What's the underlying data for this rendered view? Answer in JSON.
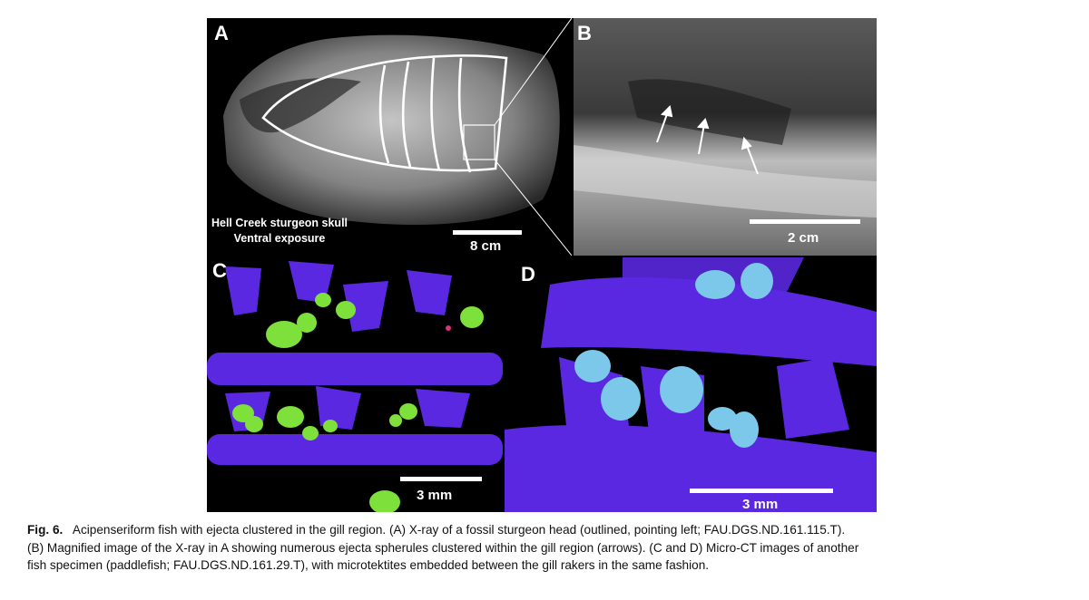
{
  "panels": {
    "a": {
      "label": "A",
      "caption_line1": "Hell Creek sturgeon skull",
      "caption_line2": "Ventral exposure",
      "scale": "8 cm"
    },
    "b": {
      "label": "B",
      "scale": "2 cm"
    },
    "c": {
      "label": "C",
      "scale": "3 mm"
    },
    "d": {
      "label": "D",
      "scale": "3 mm"
    }
  },
  "colors": {
    "bone": "#5a28e0",
    "ejecta_green": "#7ee03a",
    "ejecta_blue": "#7cc8ea",
    "magenta_spot": "#e0307a"
  },
  "caption": {
    "figure_number": "Fig. 6.",
    "line1": "Acipenseriform fish with ejecta clustered in the gill region. (A) X-ray of a fossil sturgeon head (outlined, pointing left; FAU.DGS.ND.161.115.T).",
    "line2": "(B) Magnified image of the X-ray in A showing numerous ejecta spherules clustered within the gill region (arrows). (C and D) Micro-CT images of another",
    "line3": "fish specimen (paddlefish; FAU.DGS.ND.161.29.T), with microtektites embedded between the gill rakers in the same fashion."
  }
}
